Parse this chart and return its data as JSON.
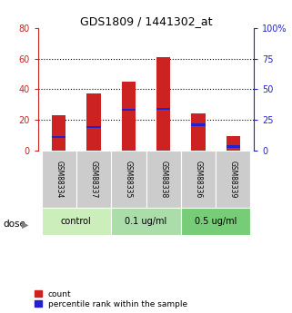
{
  "title": "GDS1809 / 1441302_at",
  "samples": [
    "GSM88334",
    "GSM88337",
    "GSM88335",
    "GSM88338",
    "GSM88336",
    "GSM88339"
  ],
  "count_values": [
    23,
    37,
    45,
    61,
    24,
    9
  ],
  "percentile_values": [
    11,
    19,
    33,
    34,
    21,
    3
  ],
  "groups": [
    {
      "label": "control",
      "indices": [
        0,
        1
      ],
      "color": "#cceebb"
    },
    {
      "label": "0.1 ug/ml",
      "indices": [
        2,
        3
      ],
      "color": "#aaddaa"
    },
    {
      "label": "0.5 ug/ml",
      "indices": [
        4,
        5
      ],
      "color": "#77cc77"
    }
  ],
  "ylim_left": [
    0,
    80
  ],
  "ylim_right": [
    0,
    100
  ],
  "yticks_left": [
    0,
    20,
    40,
    60,
    80
  ],
  "yticks_right": [
    0,
    25,
    50,
    75,
    100
  ],
  "ytick_labels_right": [
    "0",
    "25",
    "50",
    "75",
    "100%"
  ],
  "bar_color": "#cc2222",
  "percentile_color": "#2222cc",
  "bar_width": 0.4,
  "left_axis_color": "#cc2222",
  "right_axis_color": "#2222cc",
  "dose_label": "dose",
  "legend_count": "count",
  "legend_percentile": "percentile rank within the sample",
  "sample_bg_color": "#cccccc",
  "fig_width": 3.21,
  "fig_height": 3.45,
  "pct_bar_height": 1.5
}
